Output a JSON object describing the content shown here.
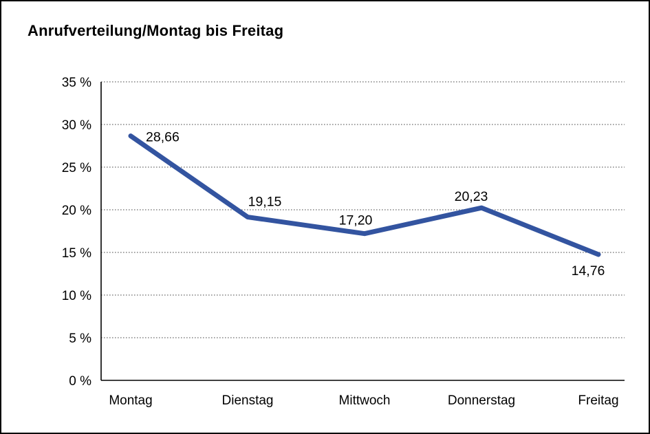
{
  "title": "Anrufverteilung/Montag bis Freitag",
  "colors": {
    "line": "#3354A0",
    "grid": "#6E6E6E",
    "axis": "#000000",
    "border": "#000000",
    "background": "#FFFFFF",
    "text": "#000000"
  },
  "chart_data": {
    "type": "line",
    "title": "Anrufverteilung/Montag bis Freitag",
    "categories": [
      "Montag",
      "Dienstag",
      "Mittwoch",
      "Donnerstag",
      "Freitag"
    ],
    "values": [
      28.66,
      19.15,
      17.2,
      20.23,
      14.76
    ],
    "value_labels": [
      "28,66",
      "19,15",
      "17,20",
      "20,23",
      "14,76"
    ],
    "xlabel": "",
    "ylabel": "",
    "ylim": [
      0,
      35
    ],
    "ytick_step": 5,
    "ytick_labels": [
      "0 %",
      "5 %",
      "10 %",
      "15 %",
      "20 %",
      "25 %",
      "30 %",
      "35 %"
    ],
    "grid": "horizontal-dotted",
    "legend": "none",
    "unit": "%"
  }
}
